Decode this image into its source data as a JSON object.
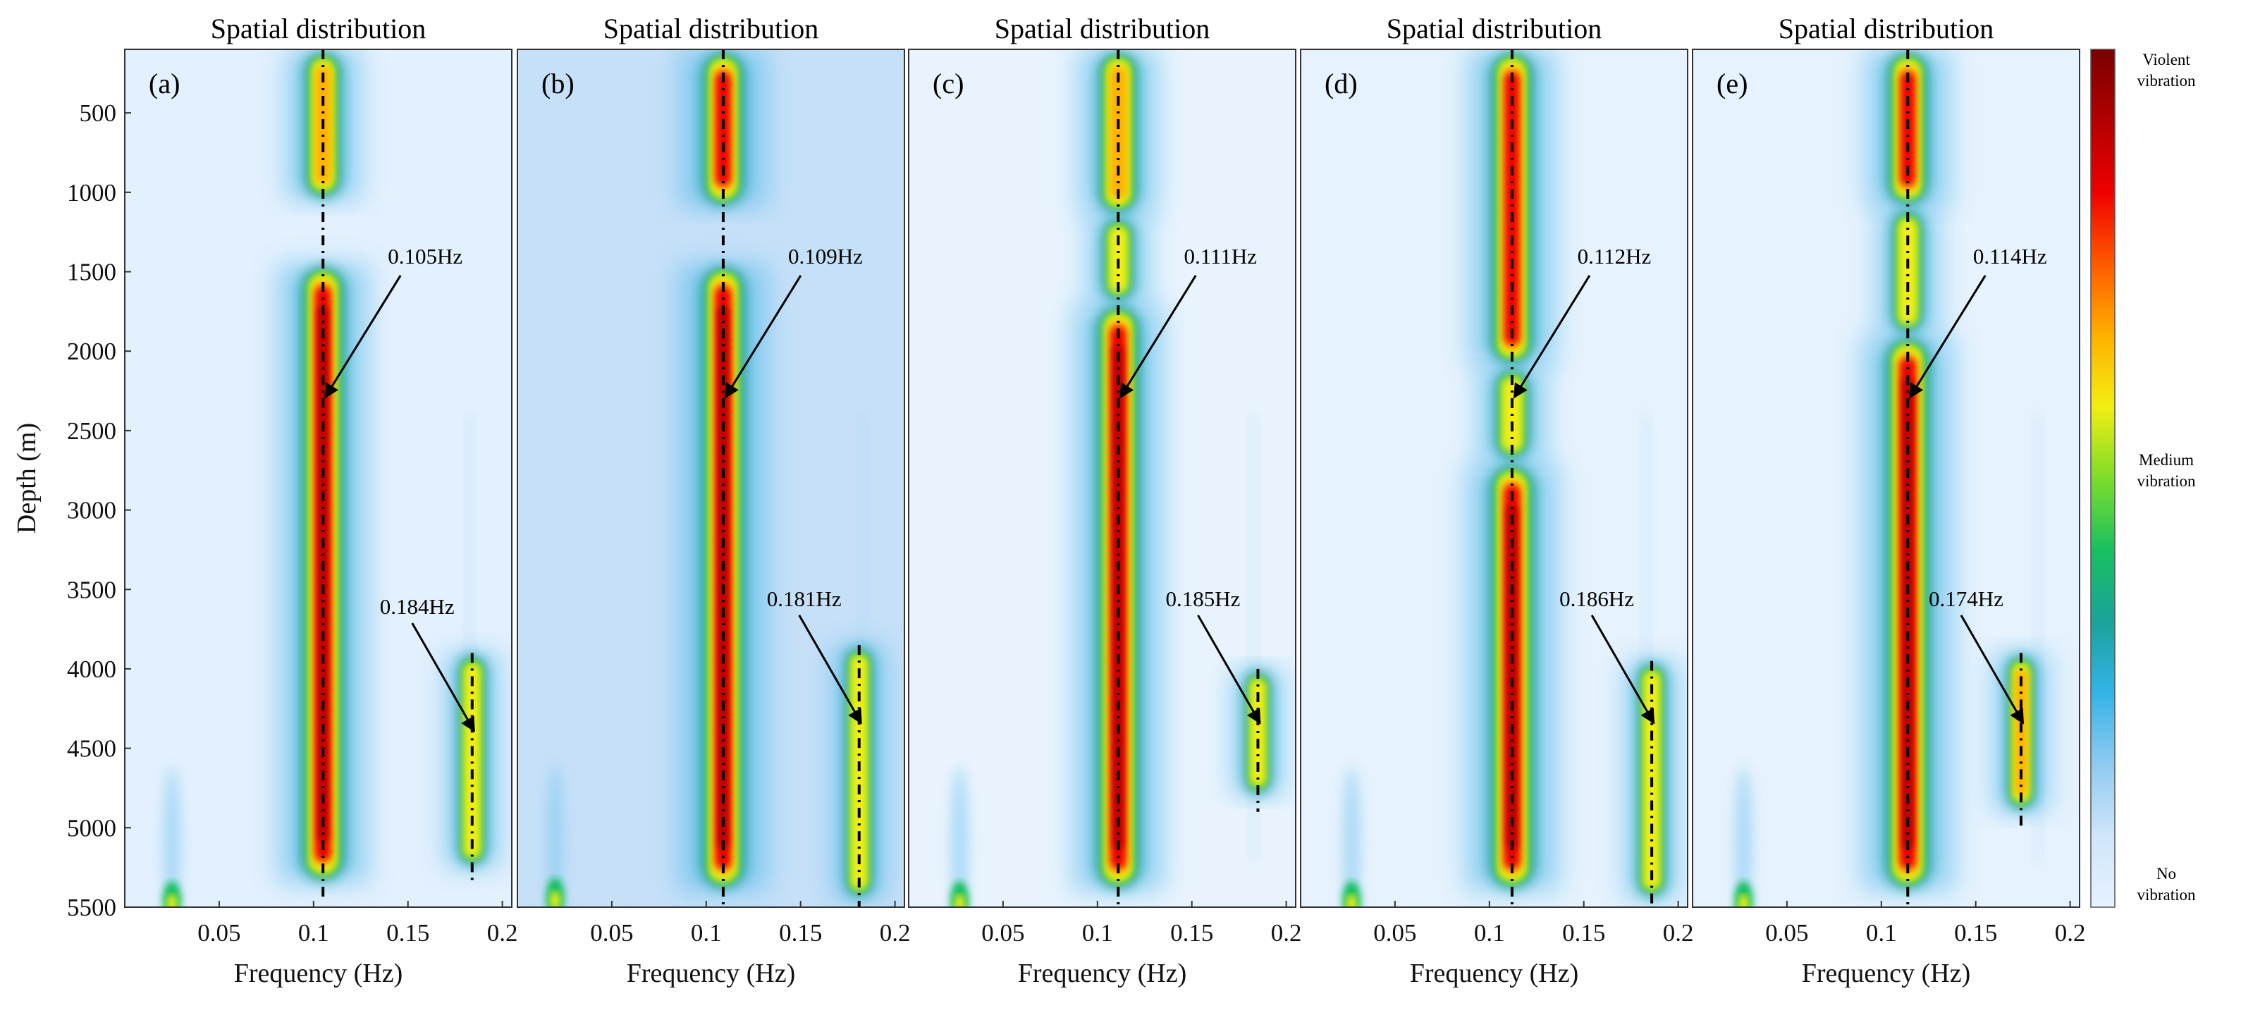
{
  "figure": {
    "ylabel": "Depth (m)",
    "xlabel": "Frequency (Hz)",
    "colorbar": {
      "top_label": [
        "Violent",
        "vibration"
      ],
      "mid_label": [
        "Medium",
        "vibration"
      ],
      "bottom_label": [
        "No",
        "vibration"
      ],
      "colors": [
        "#e6f2ff",
        "#cfe5fa",
        "#8fcaf0",
        "#33b3e8",
        "#1aa39a",
        "#19c060",
        "#7ddd2a",
        "#f2ee12",
        "#ffb000",
        "#ff5a00",
        "#f00000",
        "#b30000",
        "#7a0000"
      ]
    }
  },
  "chart_data": [
    {
      "type": "heatmap",
      "panel_label": "(a)",
      "title": "Spatial distribution",
      "xlabel": "Frequency (Hz)",
      "ylabel": "Depth (m)",
      "xlim": [
        0,
        0.205
      ],
      "ylim": [
        5500,
        100
      ],
      "xticks": [
        0.05,
        0.1,
        0.15,
        0.2
      ],
      "xtick_labels": [
        "0.05",
        "0.1",
        "0.15",
        "0.2"
      ],
      "yticks": [
        500,
        1000,
        1500,
        2000,
        2500,
        3000,
        3500,
        4000,
        4500,
        5000,
        5500
      ],
      "ytick_labels": [
        "500",
        "1000",
        "1500",
        "2000",
        "2500",
        "3000",
        "3500",
        "4000",
        "4500",
        "5000",
        "5500"
      ],
      "background": "#e3f0fd",
      "modes": [
        {
          "frequency": 0.105,
          "annotation": "0.105Hz",
          "pointer_depth": 2300,
          "segments": [
            {
              "from": 100,
              "to": 1050,
              "intensity": 0.65
            },
            {
              "from": 1450,
              "to": 5350,
              "intensity": 0.95
            }
          ]
        },
        {
          "frequency": 0.184,
          "annotation": "0.184Hz",
          "pointer_depth": 4400,
          "segments": [
            {
              "from": 3900,
              "to": 5250,
              "intensity": 0.55
            }
          ]
        }
      ],
      "low_freq_spot": {
        "frequency": 0.025,
        "depth": 5460
      }
    },
    {
      "type": "heatmap",
      "panel_label": "(b)",
      "title": "Spatial distribution",
      "xlabel": "Frequency (Hz)",
      "xlim": [
        0,
        0.205
      ],
      "ylim": [
        5500,
        100
      ],
      "xticks": [
        0.05,
        0.1,
        0.15,
        0.2
      ],
      "xtick_labels": [
        "0.05",
        "0.1",
        "0.15",
        "0.2"
      ],
      "background": "#c6e0f8",
      "modes": [
        {
          "frequency": 0.109,
          "annotation": "0.109Hz",
          "pointer_depth": 2300,
          "segments": [
            {
              "from": 100,
              "to": 1100,
              "intensity": 0.9
            },
            {
              "from": 1450,
              "to": 5400,
              "intensity": 0.95
            }
          ]
        },
        {
          "frequency": 0.181,
          "annotation": "0.181Hz",
          "pointer_depth": 4350,
          "segments": [
            {
              "from": 3850,
              "to": 5450,
              "intensity": 0.55
            }
          ]
        }
      ],
      "low_freq_spot": {
        "frequency": 0.02,
        "depth": 5440
      }
    },
    {
      "type": "heatmap",
      "panel_label": "(c)",
      "title": "Spatial distribution",
      "xlabel": "Frequency (Hz)",
      "xlim": [
        0,
        0.205
      ],
      "ylim": [
        5500,
        100
      ],
      "xticks": [
        0.05,
        0.1,
        0.15,
        0.2
      ],
      "xtick_labels": [
        "0.05",
        "0.1",
        "0.15",
        "0.2"
      ],
      "background": "#e8f3fd",
      "modes": [
        {
          "frequency": 0.111,
          "annotation": "0.111Hz",
          "pointer_depth": 2300,
          "segments": [
            {
              "from": 100,
              "to": 1150,
              "intensity": 0.75
            },
            {
              "from": 1150,
              "to": 1700,
              "intensity": 0.45
            },
            {
              "from": 1700,
              "to": 5400,
              "intensity": 0.95
            }
          ]
        },
        {
          "frequency": 0.185,
          "annotation": "0.185Hz",
          "pointer_depth": 4350,
          "segments": [
            {
              "from": 4000,
              "to": 4800,
              "intensity": 0.45
            }
          ]
        }
      ],
      "low_freq_spot": {
        "frequency": 0.027,
        "depth": 5460
      }
    },
    {
      "type": "heatmap",
      "panel_label": "(d)",
      "title": "Spatial distribution",
      "xlabel": "Frequency (Hz)",
      "xlim": [
        0,
        0.205
      ],
      "ylim": [
        5500,
        100
      ],
      "xticks": [
        0.05,
        0.1,
        0.15,
        0.2
      ],
      "xtick_labels": [
        "0.05",
        "0.1",
        "0.15",
        "0.2"
      ],
      "background": "#e6f2fd",
      "modes": [
        {
          "frequency": 0.112,
          "annotation": "0.112Hz",
          "pointer_depth": 2300,
          "segments": [
            {
              "from": 100,
              "to": 2100,
              "intensity": 0.9
            },
            {
              "from": 2100,
              "to": 2700,
              "intensity": 0.55
            },
            {
              "from": 2700,
              "to": 5400,
              "intensity": 1.0
            }
          ]
        },
        {
          "frequency": 0.186,
          "annotation": "0.186Hz",
          "pointer_depth": 4350,
          "segments": [
            {
              "from": 3950,
              "to": 5450,
              "intensity": 0.55
            }
          ]
        }
      ],
      "low_freq_spot": {
        "frequency": 0.027,
        "depth": 5460
      }
    },
    {
      "type": "heatmap",
      "panel_label": "(e)",
      "title": "Spatial distribution",
      "xlabel": "Frequency (Hz)",
      "xlim": [
        0,
        0.205
      ],
      "ylim": [
        5500,
        100
      ],
      "xticks": [
        0.05,
        0.1,
        0.15,
        0.2
      ],
      "xtick_labels": [
        "0.05",
        "0.1",
        "0.15",
        "0.2"
      ],
      "background": "#e6f2fd",
      "modes": [
        {
          "frequency": 0.114,
          "annotation": "0.114Hz",
          "pointer_depth": 2300,
          "segments": [
            {
              "from": 100,
              "to": 1100,
              "intensity": 0.85
            },
            {
              "from": 1100,
              "to": 1900,
              "intensity": 0.45
            },
            {
              "from": 1900,
              "to": 5400,
              "intensity": 1.0
            }
          ]
        },
        {
          "frequency": 0.174,
          "annotation": "0.174Hz",
          "pointer_depth": 4350,
          "segments": [
            {
              "from": 3900,
              "to": 4900,
              "intensity": 0.6
            }
          ]
        }
      ],
      "low_freq_spot": {
        "frequency": 0.027,
        "depth": 5460
      }
    }
  ]
}
